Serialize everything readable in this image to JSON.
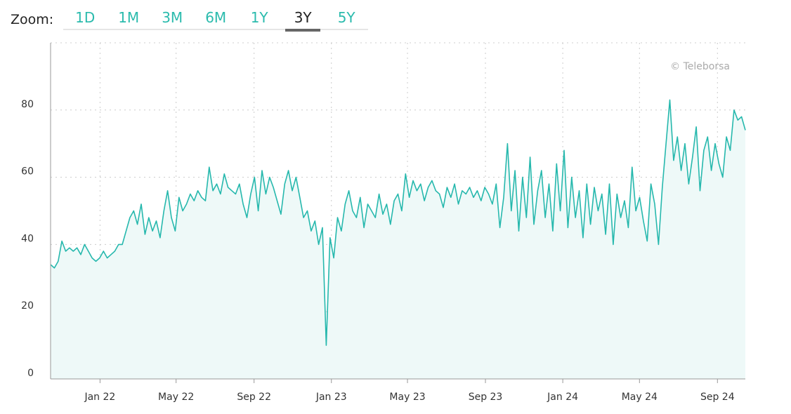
{
  "zoom": {
    "label": "Zoom:",
    "options": [
      "1D",
      "1M",
      "3M",
      "6M",
      "1Y",
      "3Y",
      "5Y"
    ],
    "active": "3Y"
  },
  "watermark": "© Teleborsa",
  "colors": {
    "line": "#26b8ad",
    "fill": "#eef9f8",
    "accent": "#2bbbad"
  },
  "chart_data": {
    "type": "area",
    "title": "",
    "xlabel": "",
    "ylabel": "",
    "ylim": [
      0,
      100
    ],
    "y_ticks": [
      0,
      20,
      40,
      60,
      80
    ],
    "x_range": [
      "2021-10-15",
      "2024-10-15"
    ],
    "x_ticks": [
      {
        "label": "Jan 22",
        "date": "2022-01-01"
      },
      {
        "label": "May 22",
        "date": "2022-05-01"
      },
      {
        "label": "Sep 22",
        "date": "2022-09-01"
      },
      {
        "label": "Jan 23",
        "date": "2023-01-01"
      },
      {
        "label": "May 23",
        "date": "2023-05-01"
      },
      {
        "label": "Sep 23",
        "date": "2023-09-01"
      },
      {
        "label": "Jan 24",
        "date": "2024-01-01"
      },
      {
        "label": "May 24",
        "date": "2024-05-01"
      },
      {
        "label": "Sep 24",
        "date": "2024-09-01"
      }
    ],
    "grid": true,
    "values": [
      34,
      33,
      35,
      41,
      38,
      39,
      38,
      39,
      37,
      40,
      38,
      36,
      35,
      36,
      38,
      36,
      37,
      38,
      40,
      40,
      44,
      48,
      50,
      46,
      52,
      43,
      48,
      44,
      47,
      42,
      50,
      56,
      48,
      44,
      54,
      50,
      52,
      55,
      53,
      56,
      54,
      53,
      63,
      56,
      58,
      55,
      61,
      57,
      56,
      55,
      58,
      52,
      48,
      55,
      60,
      50,
      62,
      55,
      60,
      57,
      53,
      49,
      58,
      62,
      56,
      60,
      54,
      48,
      50,
      44,
      47,
      40,
      45,
      10,
      42,
      36,
      48,
      44,
      52,
      56,
      50,
      48,
      54,
      45,
      52,
      50,
      48,
      55,
      49,
      52,
      46,
      53,
      55,
      50,
      61,
      54,
      59,
      56,
      58,
      53,
      57,
      59,
      56,
      55,
      51,
      57,
      54,
      58,
      52,
      56,
      55,
      57,
      54,
      56,
      53,
      57,
      55,
      52,
      58,
      45,
      54,
      70,
      50,
      62,
      44,
      60,
      48,
      66,
      46,
      56,
      62,
      48,
      58,
      44,
      64,
      50,
      68,
      45,
      60,
      48,
      56,
      42,
      58,
      46,
      57,
      50,
      55,
      43,
      58,
      40,
      55,
      48,
      53,
      45,
      63,
      50,
      54,
      47,
      41,
      58,
      52,
      40,
      57,
      70,
      83,
      65,
      72,
      62,
      70,
      58,
      66,
      75,
      56,
      68,
      72,
      62,
      70,
      64,
      60,
      72,
      68,
      80,
      77,
      78,
      74
    ]
  }
}
